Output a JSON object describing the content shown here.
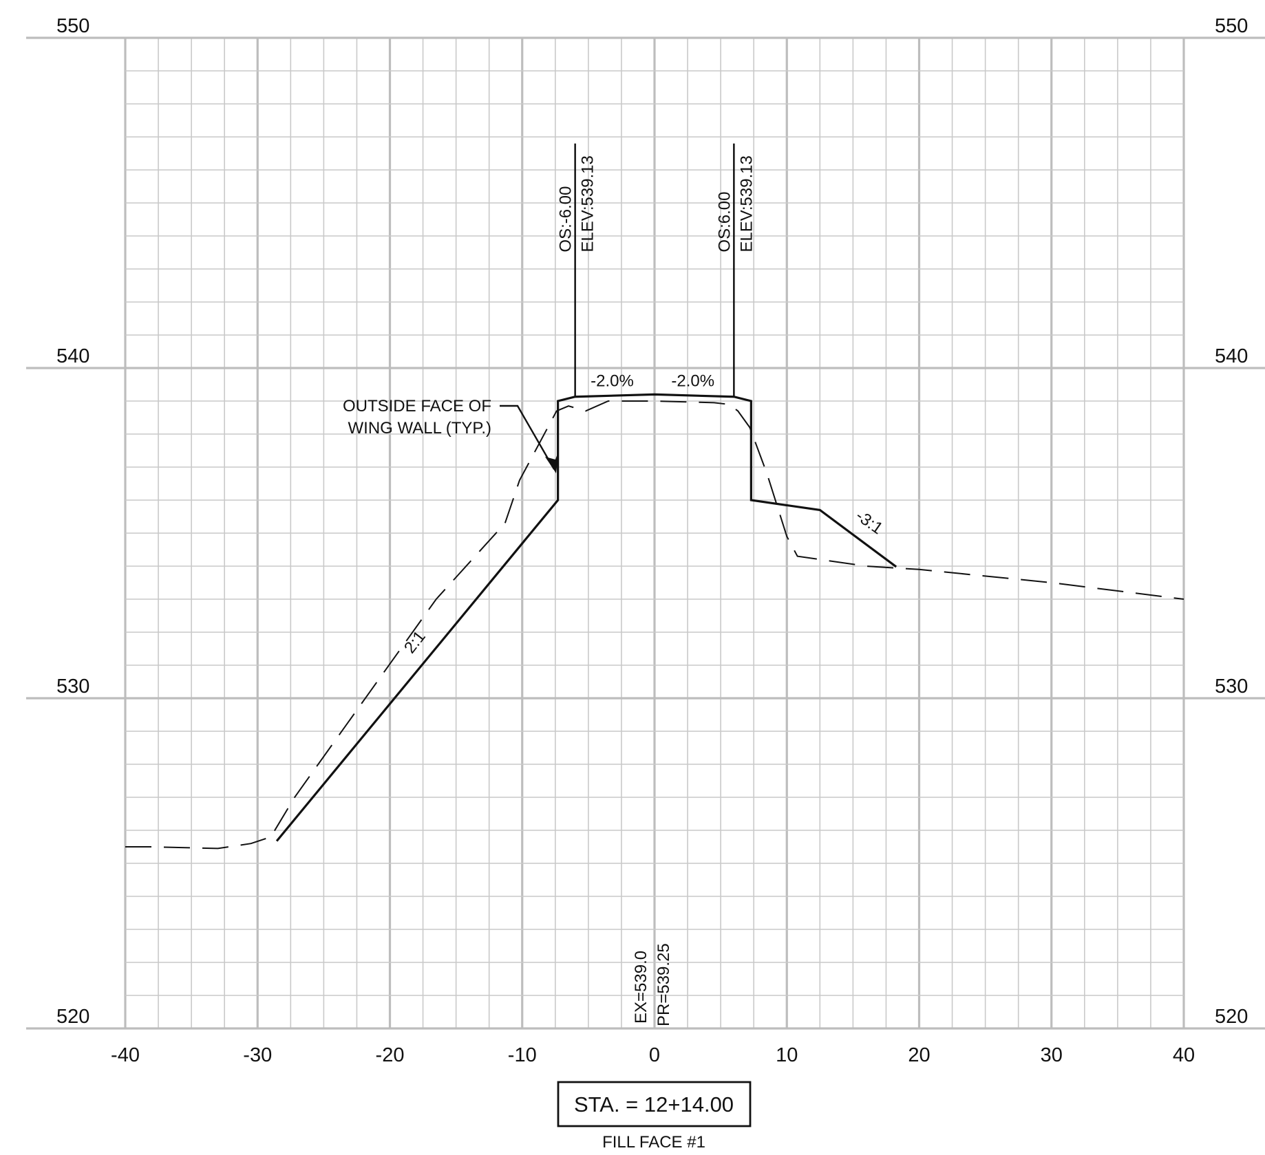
{
  "diagram": {
    "x_axis": {
      "min": -40,
      "max": 40,
      "major_step": 10,
      "minor_step": 2.5,
      "ticks": [
        "-40",
        "-30",
        "-20",
        "-10",
        "0",
        "10",
        "20",
        "30",
        "40"
      ]
    },
    "y_axis": {
      "min": 520,
      "max": 550,
      "major_step": 10,
      "minor_step": 1,
      "left_labels": [
        "550",
        "540",
        "530",
        "520"
      ],
      "right_labels": [
        "550",
        "540",
        "530",
        "520"
      ]
    },
    "proposed_profile": [
      [
        -28.5,
        525.7
      ],
      [
        -7.3,
        536.0
      ],
      [
        -7.3,
        539.0
      ],
      [
        -6.0,
        539.13
      ],
      [
        0,
        539.2
      ],
      [
        6.0,
        539.13
      ],
      [
        7.3,
        539.0
      ],
      [
        7.3,
        536.0
      ],
      [
        12.5,
        535.7
      ],
      [
        18.2,
        534.0
      ]
    ],
    "existing_profile": [
      [
        -40,
        525.5
      ],
      [
        -38,
        525.5
      ],
      [
        -33,
        525.45
      ],
      [
        -30.5,
        525.6
      ],
      [
        -29.0,
        525.8
      ],
      [
        -27.2,
        527.0
      ],
      [
        -21.5,
        530.2
      ],
      [
        -16.5,
        533.0
      ],
      [
        -11.3,
        535.3
      ],
      [
        -10.2,
        536.6
      ],
      [
        -7.4,
        538.7
      ],
      [
        -6.5,
        538.85
      ],
      [
        -5.2,
        538.7
      ],
      [
        -3.5,
        539.0
      ],
      [
        0,
        539.0
      ],
      [
        4.5,
        538.95
      ],
      [
        5.6,
        538.9
      ],
      [
        6.3,
        538.7
      ],
      [
        7.2,
        538.2
      ],
      [
        8.5,
        536.8
      ],
      [
        10.0,
        534.9
      ],
      [
        10.8,
        534.3
      ],
      [
        16.0,
        534.0
      ],
      [
        20.0,
        533.9
      ],
      [
        30.0,
        533.5
      ],
      [
        40.0,
        533.0
      ]
    ],
    "offset_markers": [
      {
        "offset": -6.0,
        "top_elevation": 546.8,
        "line1": "OS:-6.00",
        "line2": "ELEV:539.13"
      },
      {
        "offset": 6.0,
        "top_elevation": 546.8,
        "line1": "OS:6.00",
        "line2": "ELEV:539.13"
      }
    ],
    "slope_labels": [
      {
        "text": "-2.0%",
        "offset": -3.2,
        "elevation": 539.45
      },
      {
        "text": "-2.0%",
        "offset": 2.9,
        "elevation": 539.45
      },
      {
        "text": "2:1",
        "offset": -17.8,
        "elevation": 531.6
      },
      {
        "text": "-3:1",
        "offset": 16.0,
        "elevation": 535.2
      }
    ],
    "annotation": {
      "line1": "OUTSIDE FACE OF",
      "line2": "WING WALL (TYP.)"
    },
    "center_labels": {
      "ex": "EX=539.0",
      "pr": "PR=539.25"
    },
    "station": {
      "label": "STA. = 12+14.00",
      "caption": "FILL FACE #1"
    }
  }
}
